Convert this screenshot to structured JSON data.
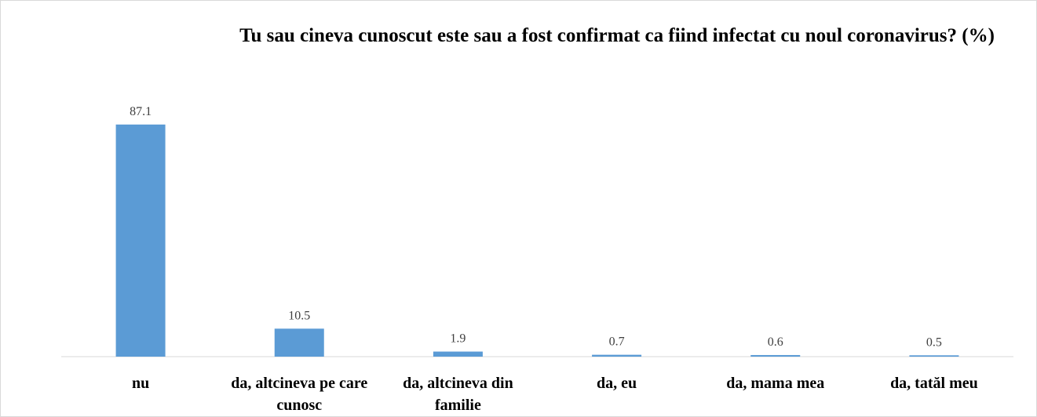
{
  "chart_data": {
    "type": "bar",
    "title": "Tu sau cineva cunoscut este sau a fost confirmat ca fiind infectat cu noul coronavirus? (%)",
    "categories": [
      "nu",
      "da, altcineva pe care cunosc",
      "da, altcineva din familie",
      "da, eu",
      "da, mama mea",
      "da, tatăl meu"
    ],
    "values": [
      87.1,
      10.5,
      1.9,
      0.7,
      0.6,
      0.5
    ],
    "color": "#5b9bd5",
    "ylim": [
      0,
      100
    ]
  }
}
